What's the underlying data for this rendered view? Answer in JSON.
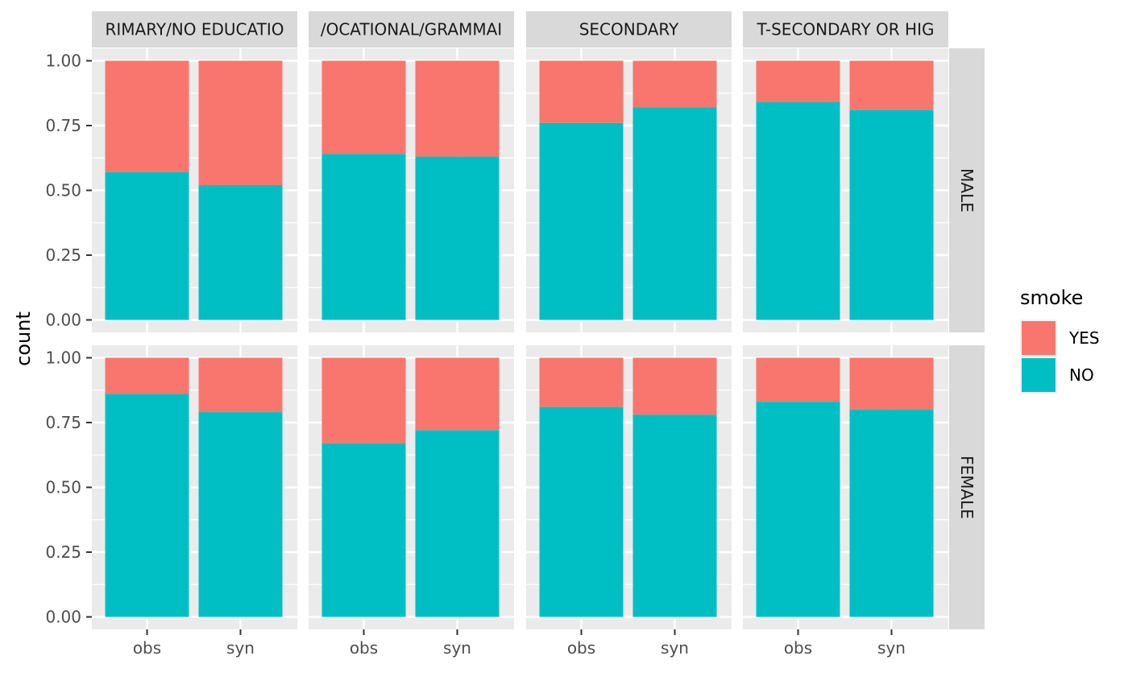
{
  "chart_data": {
    "type": "bar",
    "stacked": true,
    "facet_columns": [
      "PRIMARY/NO EDUCATION",
      "VOCATIONAL/GRAMMAR",
      "SECONDARY",
      "POST-SECONDARY OR HIGHER"
    ],
    "facet_column_labels_visible": [
      "RIMARY/NO EDUCATIO",
      "/OCATIONAL/GRAMMAI",
      "SECONDARY",
      "T-SECONDARY OR HIG"
    ],
    "facet_rows": [
      "MALE",
      "FEMALE"
    ],
    "categories": [
      "obs",
      "syn"
    ],
    "ylabel": "count",
    "xlabel": "",
    "ylim": [
      0,
      1
    ],
    "yticks": [
      "0.00",
      "0.25",
      "0.50",
      "0.75",
      "1.00"
    ],
    "yticks_values": [
      0,
      0.25,
      0.5,
      0.75,
      1
    ],
    "grid": true,
    "legend": {
      "title": "smoke",
      "position": "right",
      "entries": [
        {
          "name": "YES",
          "color": "#F8766D"
        },
        {
          "name": "NO",
          "color": "#00BFC4"
        }
      ]
    },
    "series_order": [
      "NO",
      "YES"
    ],
    "panels": [
      {
        "row": "MALE",
        "column": "PRIMARY/NO EDUCATION",
        "NO": [
          0.57,
          0.52
        ]
      },
      {
        "row": "MALE",
        "column": "VOCATIONAL/GRAMMAR",
        "NO": [
          0.64,
          0.63
        ]
      },
      {
        "row": "MALE",
        "column": "SECONDARY",
        "NO": [
          0.76,
          0.82
        ]
      },
      {
        "row": "MALE",
        "column": "POST-SECONDARY OR HIGHER",
        "NO": [
          0.84,
          0.81
        ]
      },
      {
        "row": "FEMALE",
        "column": "PRIMARY/NO EDUCATION",
        "NO": [
          0.86,
          0.79
        ]
      },
      {
        "row": "FEMALE",
        "column": "VOCATIONAL/GRAMMAR",
        "NO": [
          0.67,
          0.72
        ]
      },
      {
        "row": "FEMALE",
        "column": "SECONDARY",
        "NO": [
          0.81,
          0.78
        ]
      },
      {
        "row": "FEMALE",
        "column": "POST-SECONDARY OR HIGHER",
        "NO": [
          0.83,
          0.8
        ]
      }
    ],
    "colors": {
      "panel_bg": "#EBEBEB",
      "grid": "#FFFFFF",
      "strip_bg": "#D9D9D9"
    }
  }
}
